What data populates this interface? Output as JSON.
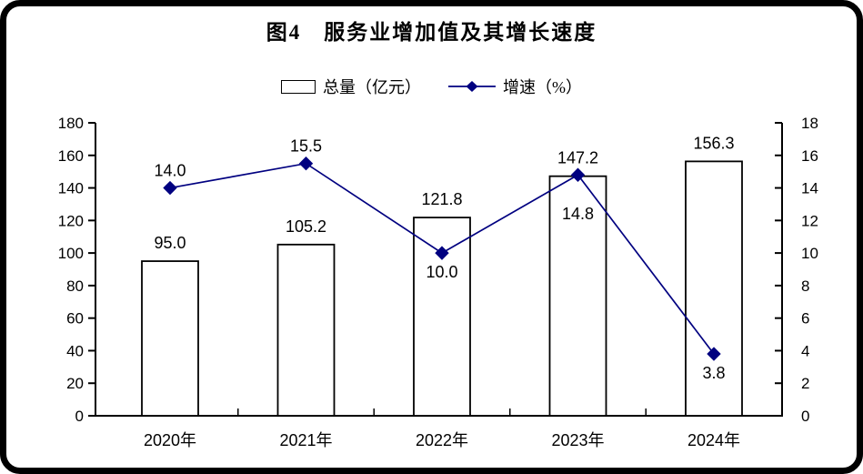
{
  "window": {
    "background": "#ffffff",
    "frame_border_color": "#000000"
  },
  "title": "图4　服务业增加值及其增长速度",
  "legend": {
    "position": "top",
    "items": [
      {
        "swatch": "bar",
        "label": "总量（亿元）"
      },
      {
        "swatch": "line",
        "label": "增速（%）"
      }
    ]
  },
  "colors": {
    "line_series": "#000080",
    "bar_fill": "#ffffff",
    "bar_stroke": "#000000",
    "axis": "#000000",
    "text": "#000000"
  },
  "chart_data": {
    "type": "combo-bar-line",
    "title": "图4　服务业增加值及其增长速度",
    "categories": [
      "2020年",
      "2021年",
      "2022年",
      "2023年",
      "2024年"
    ],
    "series": [
      {
        "name": "总量（亿元）",
        "type": "bar",
        "axis": "left",
        "values": [
          95.0,
          105.2,
          121.8,
          147.2,
          156.3
        ],
        "data_labels": [
          "95.0",
          "105.2",
          "121.8",
          "147.2",
          "156.3"
        ],
        "fill": "#ffffff",
        "stroke": "#000000"
      },
      {
        "name": "增速（%）",
        "type": "line",
        "axis": "right",
        "values": [
          14.0,
          15.5,
          10.0,
          14.8,
          3.8
        ],
        "data_labels": [
          "14.0",
          "15.5",
          "10.0",
          "14.8",
          "3.8"
        ],
        "label_placement": [
          "above",
          "above",
          "below",
          "below-far",
          "below"
        ],
        "color": "#000080",
        "marker": "diamond"
      }
    ],
    "left_axis": {
      "min": 0,
      "max": 180,
      "step": 20,
      "tick_labels": [
        "0",
        "20",
        "40",
        "60",
        "80",
        "100",
        "120",
        "140",
        "160",
        "180"
      ]
    },
    "right_axis": {
      "min": 0,
      "max": 18,
      "step": 2,
      "tick_labels": [
        "0",
        "2",
        "4",
        "6",
        "8",
        "10",
        "12",
        "14",
        "16",
        "18"
      ]
    },
    "grid": false,
    "legend_position": "top"
  }
}
